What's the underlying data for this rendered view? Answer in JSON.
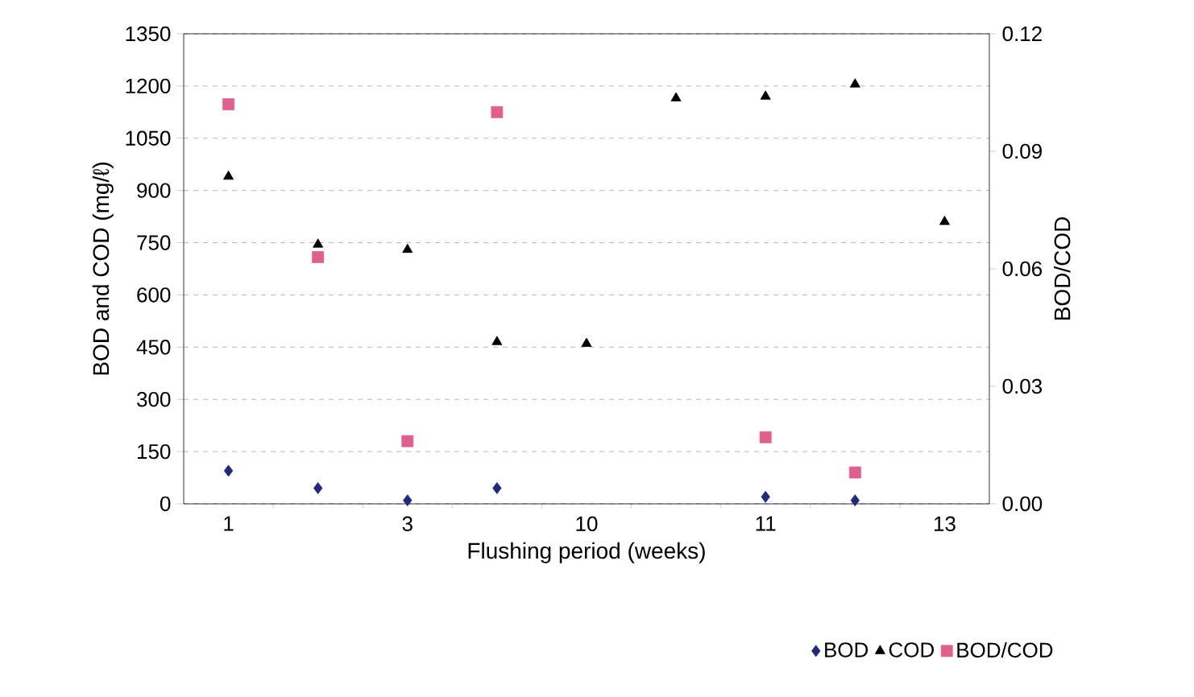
{
  "chart_data": {
    "type": "scatter",
    "xlabel": "Flushing period (weeks)",
    "ylabel": "BOD and COD (mg/ℓ)",
    "y2label": "BOD/COD",
    "categories": [
      "1",
      null,
      "3",
      null,
      "10",
      null,
      "11",
      null,
      "13"
    ],
    "series": [
      {
        "name": "BOD",
        "color": "#1f2a7a",
        "marker": "diamond",
        "values": [
          95,
          45,
          10,
          45,
          null,
          null,
          20,
          10,
          null
        ]
      },
      {
        "name": "COD",
        "color": "#000000",
        "marker": "triangle",
        "values": [
          940,
          745,
          730,
          465,
          460,
          1165,
          1170,
          1205,
          810
        ]
      },
      {
        "name": "BOD/COD",
        "color": "#e0608a",
        "marker": "square",
        "axis": "y2",
        "values": [
          0.102,
          0.063,
          0.016,
          0.1,
          null,
          null,
          0.017,
          0.008,
          null
        ]
      }
    ],
    "ylim": [
      0,
      1350
    ],
    "yticks": [
      0,
      150,
      300,
      450,
      600,
      750,
      900,
      1050,
      1200,
      1350
    ],
    "y2lim": [
      0,
      0.12
    ],
    "y2ticks": [
      {
        "value": 0,
        "label": "0.00"
      },
      0.03,
      0.06,
      0.09,
      0.12
    ],
    "grid": "y",
    "legend": "bottom right"
  }
}
